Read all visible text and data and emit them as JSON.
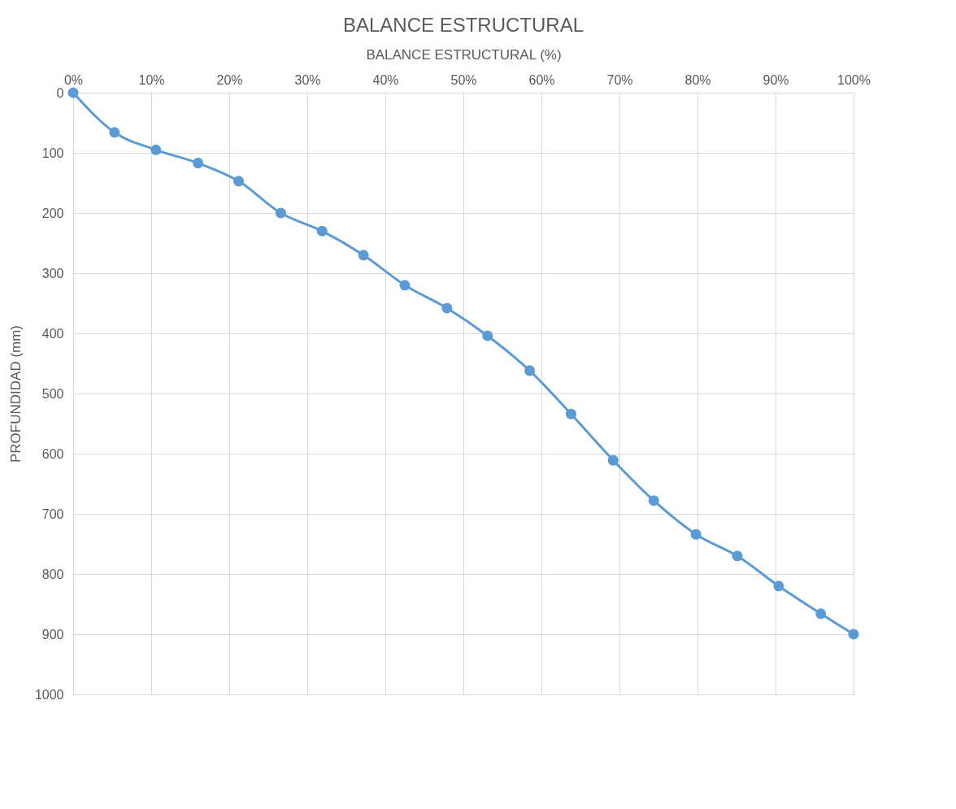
{
  "chart_data": {
    "type": "line",
    "title": "BALANCE ESTRUCTURAL",
    "xlabel": "BALANCE ESTRUCTURAL (%)",
    "ylabel": "PROFUNDIDAD (mm)",
    "x": [
      0,
      5.3,
      10.6,
      16,
      21.2,
      26.6,
      31.9,
      37.2,
      42.5,
      47.9,
      53.1,
      58.5,
      63.8,
      69.2,
      74.4,
      79.8,
      85.1,
      90.4,
      95.8,
      100
    ],
    "series": [
      {
        "color": "#5b9bd5",
        "values": [
          0,
          66,
          95,
          117,
          147,
          200,
          230,
          270,
          320,
          358,
          404,
          462,
          534,
          611,
          678,
          734,
          770,
          820,
          866,
          900
        ]
      }
    ],
    "xlim": [
      0,
      100
    ],
    "xticks": [
      {
        "value": 0,
        "label": "0%"
      },
      {
        "value": 10,
        "label": "10%"
      },
      {
        "value": 20,
        "label": "20%"
      },
      {
        "value": 30,
        "label": "30%"
      },
      {
        "value": 40,
        "label": "40%"
      },
      {
        "value": 50,
        "label": "50%"
      },
      {
        "value": 60,
        "label": "60%"
      },
      {
        "value": 70,
        "label": "70%"
      },
      {
        "value": 80,
        "label": "80%"
      },
      {
        "value": 90,
        "label": "90%"
      },
      {
        "value": 100,
        "label": "100%"
      }
    ],
    "ylim": [
      1000,
      0
    ],
    "yticks": [
      0,
      100,
      200,
      300,
      400,
      500,
      600,
      700,
      800,
      900,
      1000
    ],
    "grid": true,
    "marker": "circle",
    "line_style": "solid",
    "legend": false
  }
}
